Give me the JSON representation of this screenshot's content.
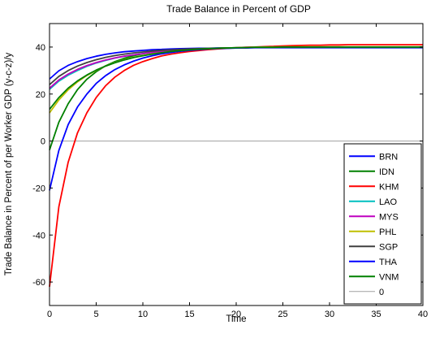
{
  "chart_data": {
    "type": "line",
    "title": "Trade Balance in Percent of GDP",
    "xlabel": "Time",
    "ylabel": "Trade Balance in Percent of per Worker GDP (y-c-z)/y",
    "xlim": [
      0,
      40
    ],
    "ylim": [
      -70,
      50
    ],
    "xticks": [
      0,
      5,
      10,
      15,
      20,
      25,
      30,
      35,
      40
    ],
    "yticks": [
      -60,
      -40,
      -20,
      0,
      20,
      40
    ],
    "grid": false,
    "legend_position": "bottom-right",
    "x": [
      0,
      1,
      2,
      3,
      4,
      5,
      6,
      7,
      8,
      9,
      10,
      11,
      12,
      13,
      14,
      15,
      16,
      17,
      18,
      19,
      20,
      21,
      22,
      23,
      24,
      25,
      26,
      27,
      28,
      29,
      30,
      31,
      32,
      33,
      34,
      35,
      36,
      37,
      38,
      39,
      40
    ],
    "series": [
      {
        "name": "BRN",
        "color": "#0000ff",
        "values": [
          26.4,
          29.9,
          32.2,
          33.8,
          35.1,
          36.1,
          36.9,
          37.5,
          38.0,
          38.3,
          38.6,
          38.9,
          39.0,
          39.2,
          39.3,
          39.4,
          39.5,
          39.5,
          39.6,
          39.6,
          39.6,
          39.6,
          39.7,
          39.7,
          39.7,
          39.7,
          39.7,
          39.7,
          39.7,
          39.7,
          39.7,
          39.7,
          39.7,
          39.7,
          39.7,
          39.7,
          39.7,
          39.7,
          39.7,
          39.7,
          39.7
        ]
      },
      {
        "name": "IDN",
        "color": "#008000",
        "values": [
          -3.8,
          8.0,
          15.9,
          21.9,
          26.3,
          29.5,
          32.0,
          33.8,
          35.2,
          36.3,
          37.1,
          37.8,
          38.3,
          38.6,
          38.9,
          39.1,
          39.3,
          39.4,
          39.5,
          39.6,
          39.7,
          39.7,
          39.8,
          39.8,
          39.8,
          39.8,
          39.8,
          39.8,
          39.8,
          39.8,
          39.8,
          39.8,
          39.8,
          39.8,
          39.8,
          39.8,
          39.8,
          39.8,
          39.8,
          39.8,
          39.8
        ]
      },
      {
        "name": "KHM",
        "color": "#ff0000",
        "values": [
          -62.0,
          -28.0,
          -9.0,
          3.5,
          12.0,
          18.5,
          23.5,
          27.2,
          30.0,
          32.2,
          33.8,
          35.1,
          36.2,
          37.0,
          37.6,
          38.1,
          38.5,
          38.9,
          39.2,
          39.4,
          39.7,
          39.9,
          40.0,
          40.2,
          40.3,
          40.5,
          40.6,
          40.7,
          40.8,
          40.8,
          40.9,
          40.9,
          41.0,
          41.0,
          41.0,
          41.0,
          41.0,
          41.0,
          41.0,
          41.0,
          41.0
        ]
      },
      {
        "name": "LAO",
        "color": "#00bfbf",
        "values": [
          22.0,
          25.5,
          28.0,
          30.0,
          31.8,
          33.2,
          34.3,
          35.3,
          36.1,
          36.7,
          37.2,
          37.7,
          38.1,
          38.4,
          38.7,
          38.9,
          39.1,
          39.3,
          39.4,
          39.5,
          39.6,
          39.7,
          39.8,
          39.8,
          39.9,
          39.9,
          40.0,
          40.0,
          40.0,
          40.0,
          40.0,
          40.0,
          40.0,
          40.0,
          40.0,
          40.0,
          40.0,
          40.0,
          40.0,
          40.0,
          40.0
        ]
      },
      {
        "name": "MYS",
        "color": "#bf00bf",
        "values": [
          22.5,
          26.0,
          28.5,
          30.5,
          32.1,
          33.4,
          34.5,
          35.4,
          36.1,
          36.7,
          37.2,
          37.7,
          38.1,
          38.4,
          38.7,
          38.9,
          39.1,
          39.3,
          39.4,
          39.5,
          39.6,
          39.7,
          39.8,
          39.9,
          39.9,
          39.9,
          40.0,
          40.0,
          40.0,
          40.0,
          40.0,
          40.0,
          40.0,
          40.0,
          40.0,
          40.0,
          40.0,
          40.0,
          40.0,
          40.0,
          40.0
        ]
      },
      {
        "name": "PHL",
        "color": "#bfbf00",
        "values": [
          12.0,
          17.5,
          21.8,
          25.2,
          27.9,
          30.1,
          31.9,
          33.4,
          34.6,
          35.6,
          36.4,
          37.1,
          37.6,
          38.1,
          38.5,
          38.8,
          39.1,
          39.3,
          39.5,
          39.6,
          39.7,
          39.8,
          39.9,
          40.0,
          40.0,
          40.1,
          40.1,
          40.1,
          40.1,
          40.1,
          40.1,
          40.1,
          40.1,
          40.1,
          40.1,
          40.1,
          40.1,
          40.1,
          40.1,
          40.1,
          40.1
        ]
      },
      {
        "name": "SGP",
        "color": "#404040",
        "values": [
          24.0,
          27.5,
          30.0,
          31.9,
          33.4,
          34.6,
          35.6,
          36.4,
          37.0,
          37.5,
          37.9,
          38.3,
          38.6,
          38.8,
          39.0,
          39.2,
          39.3,
          39.4,
          39.5,
          39.6,
          39.7,
          39.7,
          39.8,
          39.8,
          39.8,
          39.8,
          39.9,
          39.9,
          39.9,
          39.9,
          39.9,
          39.9,
          39.9,
          39.9,
          39.9,
          39.9,
          39.9,
          39.9,
          39.9,
          39.9,
          39.9
        ]
      },
      {
        "name": "THA",
        "color": "#0000ff",
        "values": [
          -21.0,
          -4.0,
          7.0,
          14.5,
          20.0,
          24.5,
          27.8,
          30.4,
          32.4,
          34.0,
          35.3,
          36.3,
          37.1,
          37.7,
          38.2,
          38.6,
          38.9,
          39.2,
          39.4,
          39.5,
          39.6,
          39.7,
          39.8,
          39.8,
          39.8,
          39.8,
          39.8,
          39.8,
          39.8,
          39.8,
          39.8,
          39.8,
          39.8,
          39.8,
          39.8,
          39.8,
          39.8,
          39.8,
          39.8,
          39.8,
          39.8
        ]
      },
      {
        "name": "VNM",
        "color": "#008000",
        "values": [
          13.5,
          18.5,
          22.5,
          25.6,
          28.1,
          30.2,
          31.9,
          33.3,
          34.5,
          35.5,
          36.3,
          37.0,
          37.6,
          38.1,
          38.5,
          38.8,
          39.1,
          39.3,
          39.5,
          39.6,
          39.7,
          39.8,
          39.9,
          39.9,
          39.9,
          40.0,
          40.0,
          40.0,
          40.0,
          40.0,
          40.0,
          40.0,
          40.0,
          40.0,
          40.0,
          40.0,
          40.0,
          40.0,
          40.0,
          40.0,
          40.0
        ]
      },
      {
        "name": "0",
        "color": "#a0a0a0",
        "values": [
          0,
          0,
          0,
          0,
          0,
          0,
          0,
          0,
          0,
          0,
          0,
          0,
          0,
          0,
          0,
          0,
          0,
          0,
          0,
          0,
          0,
          0,
          0,
          0,
          0,
          0,
          0,
          0,
          0,
          0,
          0,
          0,
          0,
          0,
          0,
          0,
          0,
          0,
          0,
          0,
          0
        ]
      }
    ]
  }
}
